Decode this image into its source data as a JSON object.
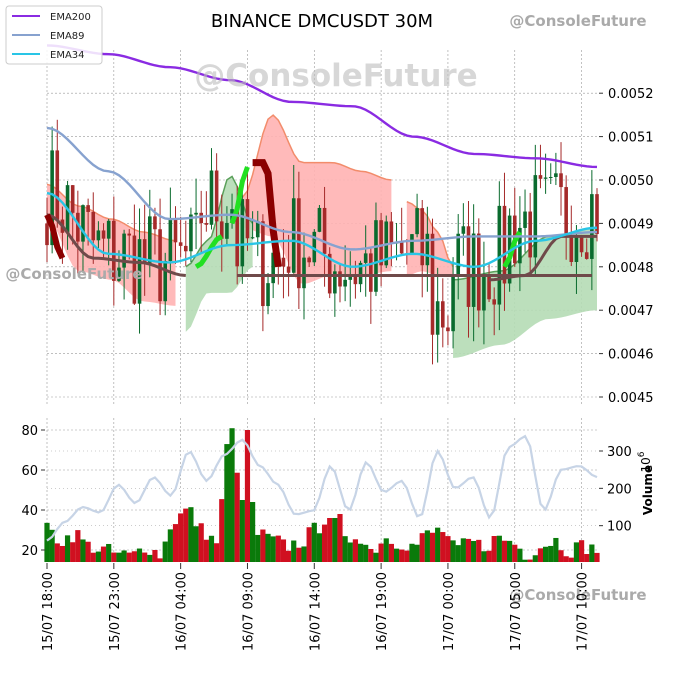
{
  "title": "BINANCE DMCUSDT 30M",
  "watermarks": [
    "@ConsoleFuture",
    "@ConsoleFuture",
    "@ConsoleFuture",
    "@ConsoleFuture"
  ],
  "colors": {
    "ema200": "#8a2be2",
    "ema89": "#87a2cf",
    "ema34": "#29c5e6",
    "cloud_bear": "#ffb3b3",
    "cloud_bear_edge": "#f28c6b",
    "cloud_bull": "#b5dcb5",
    "cloud_bull_edge": "#5aa05a",
    "candle_up": "#0a6b2e",
    "candle_down": "#a52a2a",
    "bar_up": "#0a7a0a",
    "bar_down": "#d01020",
    "volume_line": "#c7d4e6",
    "trend_line": "#6f4a4a",
    "baseline_bear": "#8b0000",
    "baseline_bull": "#22e022",
    "grid": "#999999",
    "watermark": "#bbbbbb"
  },
  "chart_data": [
    {
      "type": "line",
      "panel": "price",
      "series": [
        {
          "name": "EMA200",
          "values": [
            0.00531,
            0.00529,
            0.00526,
            0.00523,
            0.00518,
            0.00517,
            0.0051,
            0.00506,
            0.00505,
            0.00503
          ]
        },
        {
          "name": "EMA89",
          "values": [
            0.00512,
            0.00502,
            0.00491,
            0.00492,
            0.00488,
            0.00484,
            0.00486,
            0.00487,
            0.00487,
            0.00488
          ]
        },
        {
          "name": "EMA34",
          "values": [
            0.00497,
            0.00483,
            0.00481,
            0.00485,
            0.00486,
            0.0048,
            0.00483,
            0.0048,
            0.00486,
            0.00489
          ]
        }
      ],
      "y_ticks": [
        "0.0045",
        "0.0046",
        "0.0047",
        "0.0048",
        "0.0049",
        "0.0050",
        "0.0051",
        "0.0052"
      ],
      "ylim": [
        0.0045,
        0.00529
      ],
      "legend": [
        "EMA200",
        "EMA89",
        "EMA34"
      ],
      "legend_position": "top-left",
      "grid": true
    },
    {
      "type": "bar",
      "panel": "volume",
      "left_ticks": [
        "20",
        "40",
        "60",
        "80"
      ],
      "left_ylim": [
        14,
        82
      ],
      "right_ticks": [
        "100",
        "200",
        "300"
      ],
      "right_ylim": [
        0,
        400
      ],
      "right_ylabel": "Volume",
      "right_exponent": "10",
      "right_exponent_power": "6",
      "grid": true
    }
  ],
  "x_ticks": [
    "15/07 18:00",
    "15/07 23:00",
    "16/07 04:00",
    "16/07 09:00",
    "16/07 14:00",
    "16/07 19:00",
    "17/07 00:00",
    "17/07 05:00",
    "17/07 10:00"
  ]
}
